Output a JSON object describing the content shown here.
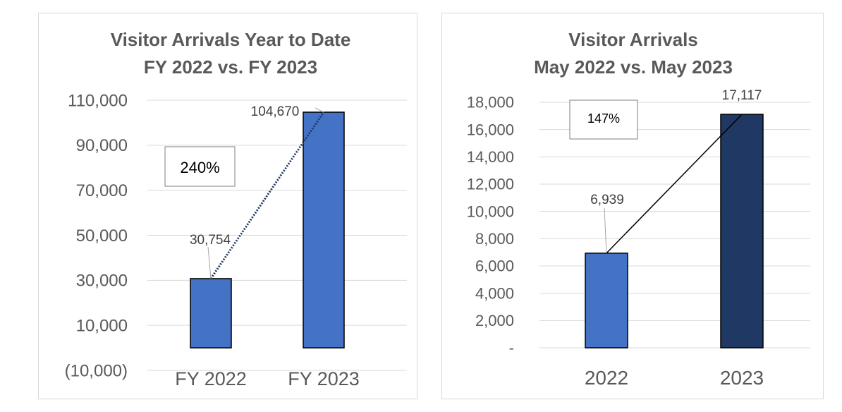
{
  "chart_data": [
    {
      "type": "bar",
      "title": [
        "Visitor Arrivals Year to Date",
        "FY 2022 vs. FY 2023"
      ],
      "categories": [
        "FY 2022",
        "FY 2023"
      ],
      "values": [
        30754,
        104670
      ],
      "value_labels": [
        "30,754",
        "104,670"
      ],
      "ylim": [
        -10000,
        110000
      ],
      "yticks": [
        -10000,
        10000,
        30000,
        50000,
        70000,
        90000,
        110000
      ],
      "ytick_labels": [
        "(10,000)",
        "10,000",
        "30,000",
        "50,000",
        "70,000",
        "90,000",
        "110,000"
      ],
      "bar_colors": [
        "#4472c4",
        "#4472c4"
      ],
      "trend_line": {
        "style": "dotted",
        "color": "#1f3864"
      },
      "annotation": "240%",
      "grid": true
    },
    {
      "type": "bar",
      "title": [
        "Visitor Arrivals",
        "May 2022 vs. May 2023"
      ],
      "categories": [
        "2022",
        "2023"
      ],
      "values": [
        6939,
        17117
      ],
      "value_labels": [
        "6,939",
        "17,117"
      ],
      "ylim": [
        0,
        18000
      ],
      "yticks": [
        0,
        2000,
        4000,
        6000,
        8000,
        10000,
        12000,
        14000,
        16000,
        18000
      ],
      "ytick_labels": [
        "-",
        "2,000",
        "4,000",
        "6,000",
        "8,000",
        "10,000",
        "12,000",
        "14,000",
        "16,000",
        "18,000"
      ],
      "bar_colors": [
        "#4472c4",
        "#1f3864"
      ],
      "trend_line": {
        "style": "solid",
        "color": "#000000"
      },
      "annotation": "147%",
      "grid": true
    }
  ]
}
